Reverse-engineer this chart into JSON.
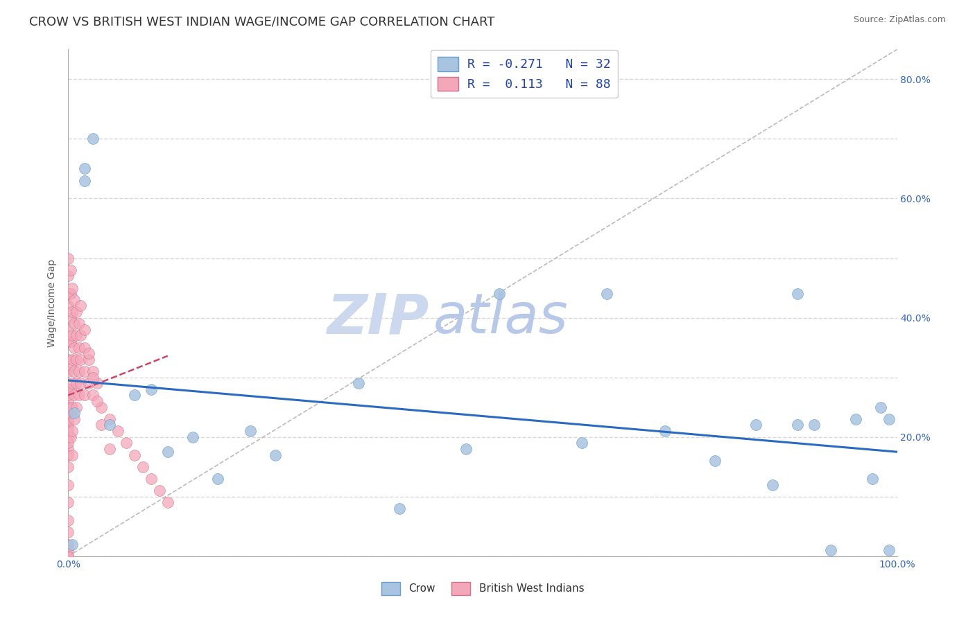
{
  "title": "CROW VS BRITISH WEST INDIAN WAGE/INCOME GAP CORRELATION CHART",
  "source": "Source: ZipAtlas.com",
  "ylabel": "Wage/Income Gap",
  "xlim": [
    0,
    1.0
  ],
  "ylim": [
    0,
    0.85
  ],
  "crow_color": "#a8c4e0",
  "crow_edge_color": "#6a9ec8",
  "bwi_color": "#f4a7b9",
  "bwi_edge_color": "#d07090",
  "crow_R": -0.271,
  "crow_N": 32,
  "bwi_R": 0.113,
  "bwi_N": 88,
  "crow_line_color": "#2a6bbf",
  "bwi_line_color": "#cc4466",
  "ref_line_color": "#bbbbbb",
  "watermark_zip": "ZIP",
  "watermark_atlas": "atlas",
  "watermark_color": "#ccd8ee",
  "background_color": "#ffffff",
  "grid_color": "#d8d8d8",
  "title_fontsize": 13,
  "axis_label_fontsize": 10,
  "tick_fontsize": 10,
  "legend_fontsize": 12,
  "crow_line_intercept": 0.295,
  "crow_line_slope": -0.12,
  "bwi_line_intercept": 0.27,
  "bwi_line_slope": 0.55,
  "crow_x": [
    0.005,
    0.007,
    0.02,
    0.02,
    0.03,
    0.05,
    0.08,
    0.1,
    0.12,
    0.15,
    0.18,
    0.22,
    0.25,
    0.35,
    0.4,
    0.48,
    0.52,
    0.62,
    0.65,
    0.72,
    0.78,
    0.83,
    0.85,
    0.88,
    0.88,
    0.9,
    0.92,
    0.95,
    0.97,
    0.98,
    0.99,
    0.99
  ],
  "crow_y": [
    0.02,
    0.24,
    0.63,
    0.65,
    0.7,
    0.22,
    0.27,
    0.28,
    0.175,
    0.2,
    0.13,
    0.21,
    0.17,
    0.29,
    0.08,
    0.18,
    0.44,
    0.19,
    0.44,
    0.21,
    0.16,
    0.22,
    0.12,
    0.22,
    0.44,
    0.22,
    0.01,
    0.23,
    0.13,
    0.25,
    0.01,
    0.23
  ],
  "bwi_x": [
    0.0,
    0.0,
    0.0,
    0.0,
    0.0,
    0.0,
    0.0,
    0.0,
    0.0,
    0.0,
    0.0,
    0.0,
    0.0,
    0.0,
    0.0,
    0.0,
    0.0,
    0.0,
    0.0,
    0.0,
    0.0,
    0.0,
    0.0,
    0.0,
    0.0,
    0.0,
    0.0,
    0.0,
    0.0,
    0.0,
    0.003,
    0.003,
    0.003,
    0.003,
    0.003,
    0.003,
    0.003,
    0.003,
    0.005,
    0.005,
    0.005,
    0.005,
    0.005,
    0.005,
    0.005,
    0.005,
    0.007,
    0.007,
    0.007,
    0.007,
    0.007,
    0.007,
    0.01,
    0.01,
    0.01,
    0.01,
    0.01,
    0.013,
    0.013,
    0.013,
    0.013,
    0.015,
    0.015,
    0.015,
    0.02,
    0.02,
    0.02,
    0.025,
    0.025,
    0.03,
    0.03,
    0.035,
    0.04,
    0.05,
    0.06,
    0.07,
    0.08,
    0.09,
    0.1,
    0.11,
    0.12,
    0.015,
    0.02,
    0.025,
    0.03,
    0.035,
    0.04,
    0.05
  ],
  "bwi_y": [
    0.5,
    0.47,
    0.44,
    0.42,
    0.38,
    0.36,
    0.33,
    0.31,
    0.28,
    0.26,
    0.24,
    0.22,
    0.2,
    0.18,
    0.15,
    0.12,
    0.09,
    0.06,
    0.04,
    0.02,
    0.01,
    0.0,
    0.0,
    0.0,
    0.27,
    0.25,
    0.23,
    0.21,
    0.19,
    0.17,
    0.48,
    0.44,
    0.4,
    0.36,
    0.32,
    0.28,
    0.24,
    0.2,
    0.45,
    0.41,
    0.37,
    0.33,
    0.29,
    0.25,
    0.21,
    0.17,
    0.43,
    0.39,
    0.35,
    0.31,
    0.27,
    0.23,
    0.41,
    0.37,
    0.33,
    0.29,
    0.25,
    0.39,
    0.35,
    0.31,
    0.27,
    0.37,
    0.33,
    0.29,
    0.35,
    0.31,
    0.27,
    0.33,
    0.29,
    0.31,
    0.27,
    0.29,
    0.25,
    0.23,
    0.21,
    0.19,
    0.17,
    0.15,
    0.13,
    0.11,
    0.09,
    0.42,
    0.38,
    0.34,
    0.3,
    0.26,
    0.22,
    0.18
  ]
}
